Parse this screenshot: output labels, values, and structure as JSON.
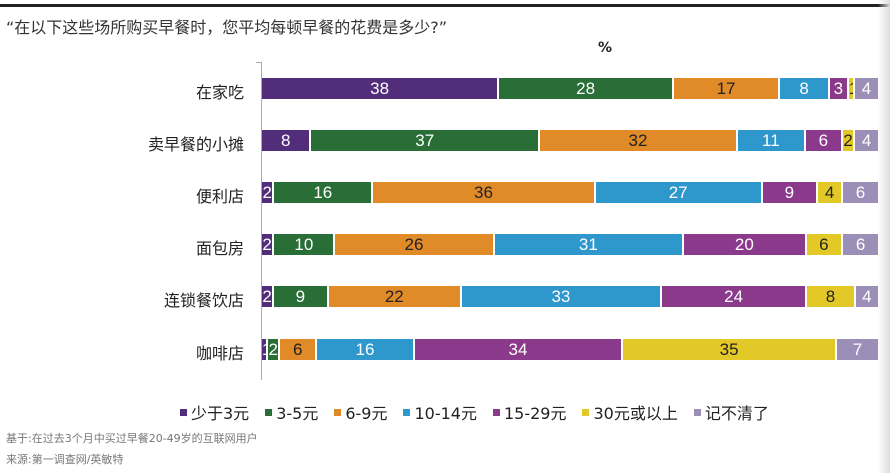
{
  "title": "“在以下这些场所购买早餐时，您平均每顿早餐的花费是多少?”",
  "chart_data": {
    "type": "bar",
    "stacked": true,
    "orientation": "horizontal",
    "unit_label": "%",
    "categories": [
      "在家吃",
      "卖早餐的小摊",
      "便利店",
      "面包房",
      "连锁餐饮店",
      "咖啡店"
    ],
    "series": [
      {
        "name": "少于3元",
        "color": "#522d7a",
        "text_color": "#ffffff",
        "values": [
          38,
          8,
          2,
          2,
          2,
          1
        ]
      },
      {
        "name": "3-5元",
        "color": "#2a6e37",
        "text_color": "#ffffff",
        "values": [
          28,
          37,
          16,
          10,
          9,
          2
        ]
      },
      {
        "name": "6-9元",
        "color": "#e08a28",
        "text_color": "#222222",
        "values": [
          17,
          32,
          36,
          26,
          22,
          6
        ]
      },
      {
        "name": "10-14元",
        "color": "#2e97cc",
        "text_color": "#ffffff",
        "values": [
          8,
          11,
          27,
          31,
          33,
          16
        ]
      },
      {
        "name": "15-29元",
        "color": "#8b3a8b",
        "text_color": "#ffffff",
        "values": [
          3,
          6,
          9,
          20,
          24,
          34
        ]
      },
      {
        "name": "30元或以上",
        "color": "#e3c927",
        "text_color": "#222222",
        "values": [
          1,
          2,
          4,
          6,
          8,
          35
        ]
      },
      {
        "name": "记不清了",
        "color": "#9b8fb8",
        "text_color": "#ffffff",
        "values": [
          4,
          4,
          6,
          6,
          4,
          7
        ]
      }
    ],
    "legend_position": "bottom",
    "grid": false
  },
  "notes": {
    "base": "基于:在过去3个月中买过早餐20-49岁的互联网用户",
    "source": "来源:第一调查网/英敏特"
  }
}
